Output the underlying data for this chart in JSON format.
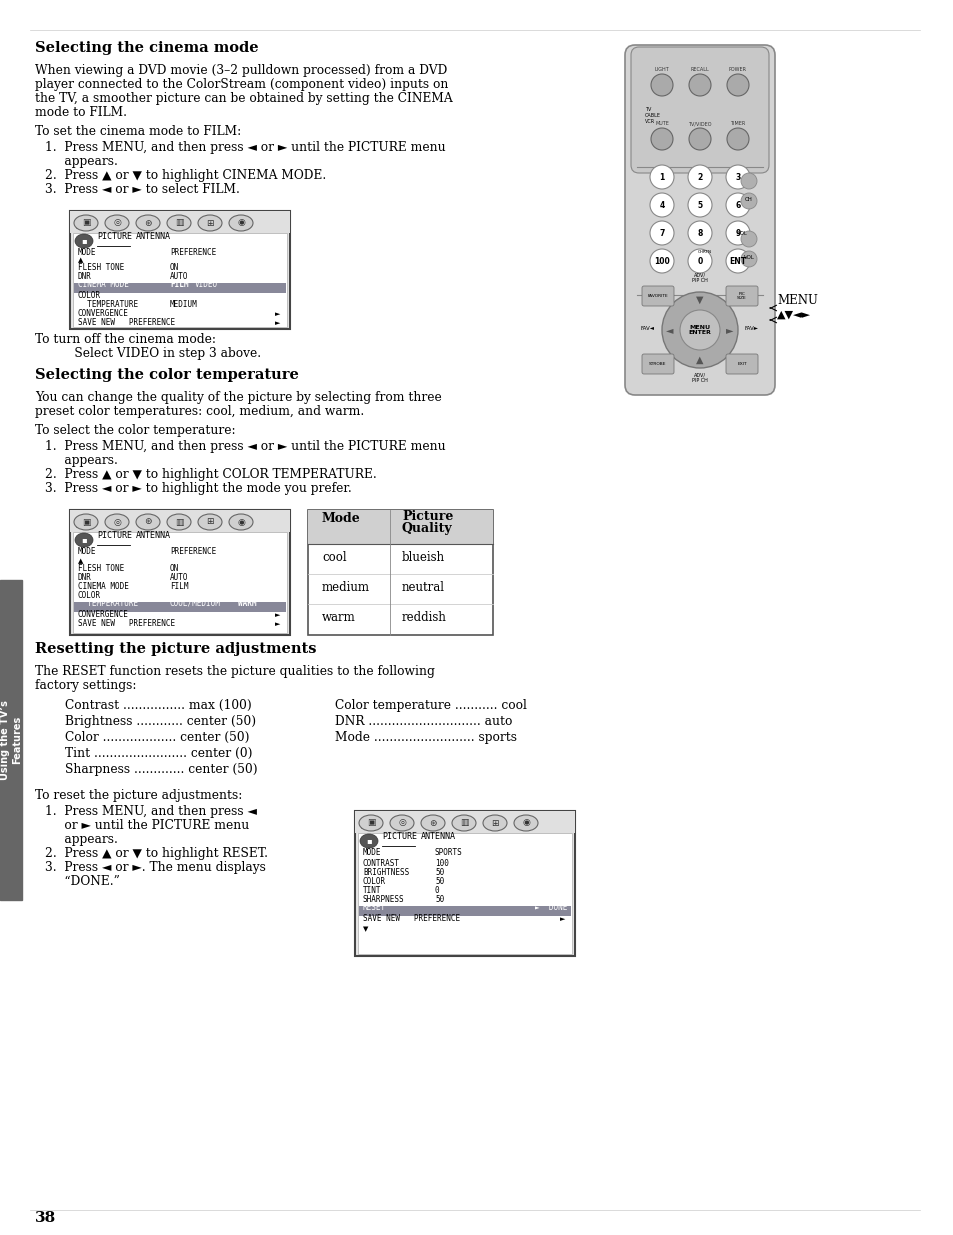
{
  "page_bg": "#ffffff",
  "sidebar_color": "#666666",
  "sidebar_text_line1": "Using the TV’s",
  "sidebar_text_line2": "Features",
  "page_number": "38",
  "section1_title": "Selecting the cinema mode",
  "section1_body": [
    "When viewing a DVD movie (3–2 pulldown processed) from a DVD",
    "player connected to the ColorStream (component video) inputs on",
    "the TV, a smoother picture can be obtained by setting the CINEMA",
    "mode to FILM."
  ],
  "section1_sub": "To set the cinema mode to FILM:",
  "section1_steps": [
    "1.  Press MENU, and then press ◄ or ► until the PICTURE menu",
    "     appears.",
    "2.  Press ▲ or ▼ to highlight CINEMA MODE.",
    "3.  Press ◄ or ► to select FILM."
  ],
  "section1_turnoff": [
    "To turn off the cinema mode:",
    "     Select VIDEO in step 3 above."
  ],
  "section2_title": "Selecting the color temperature",
  "section2_body": [
    "You can change the quality of the picture by selecting from three",
    "preset color temperatures: cool, medium, and warm."
  ],
  "section2_sub": "To select the color temperature:",
  "section2_steps": [
    "1.  Press MENU, and then press ◄ or ► until the PICTURE menu",
    "     appears.",
    "2.  Press ▲ or ▼ to highlight COLOR TEMPERATURE.",
    "3.  Press ◄ or ► to highlight the mode you prefer."
  ],
  "table_rows": [
    [
      "cool",
      "blueish"
    ],
    [
      "medium",
      "neutral"
    ],
    [
      "warm",
      "reddish"
    ]
  ],
  "section3_title": "Resetting the picture adjustments",
  "section3_body": [
    "The RESET function resets the picture qualities to the following",
    "factory settings:"
  ],
  "section3_settings_left": [
    "Contrast ................ max (100)",
    "Brightness ............ center (50)",
    "Color ................... center (50)",
    "Tint ........................ center (0)",
    "Sharpness ............. center (50)"
  ],
  "section3_settings_right": [
    "Color temperature ........... cool",
    "DNR ............................. auto",
    "Mode .......................... sports"
  ],
  "section3_sub": "To reset the picture adjustments:",
  "section3_steps_left": [
    "1.  Press MENU, and then press ◄",
    "     or ► until the PICTURE menu",
    "     appears.",
    "2.  Press ▲ or ▼ to highlight RESET.",
    "3.  Press ◄ or ►. The menu displays",
    "     “DONE.”"
  ]
}
